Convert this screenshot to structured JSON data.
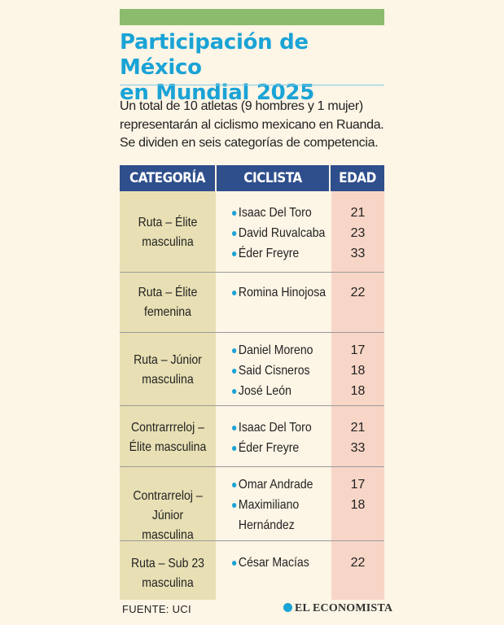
{
  "title_line1": "Participación de México",
  "title_line2": "en Mundial 2025",
  "intro": "Un total de 10 atletas (9 hombres y 1 mujer) representarán al ciclismo mexicano en Ruanda. Se dividen en seis categorías de competencia.",
  "headers": {
    "category": "CATEGORÍA",
    "cyclist": "CICLISTA",
    "age": "EDAD"
  },
  "rows": [
    {
      "cat1": "Ruta – Élite",
      "cat2": "masculina",
      "cyclists": [
        "Isaac Del Toro",
        "David Ruvalcaba",
        "Éder Freyre"
      ],
      "ages": [
        "21",
        "23",
        "33"
      ]
    },
    {
      "cat1": "Ruta – Élite",
      "cat2": "femenina",
      "cyclists": [
        "Romina Hinojosa"
      ],
      "ages": [
        "22"
      ]
    },
    {
      "cat1": "Ruta – Júnior",
      "cat2": "masculina",
      "cyclists": [
        "Daniel Moreno",
        "Said Cisneros",
        "José León"
      ],
      "ages": [
        "17",
        "18",
        "18"
      ]
    },
    {
      "cat1": "Contrarrreloj –",
      "cat2": "Élite masculina",
      "cyclists": [
        "Isaac Del Toro",
        "Éder Freyre"
      ],
      "ages": [
        "21",
        "33"
      ]
    },
    {
      "cat1": "Contrarreloj –",
      "cat2": "Júnior masculina",
      "cyclists": [
        "Omar Andrade",
        "Maximiliano Hernández"
      ],
      "ages": [
        "17",
        "18"
      ]
    },
    {
      "cat1": "Ruta – Sub 23",
      "cat2": "masculina",
      "cyclists": [
        "César Macías"
      ],
      "ages": [
        "22"
      ]
    }
  ],
  "source": "FUENTE: UCI",
  "brand": "EL ECONOMISTA",
  "colors": {
    "accent": "#1aa3d6",
    "header": "#2e4e8c",
    "green": "#8cbb6e",
    "cat_bg": "#e8e0b4",
    "age_bg": "#f8d6c7"
  }
}
